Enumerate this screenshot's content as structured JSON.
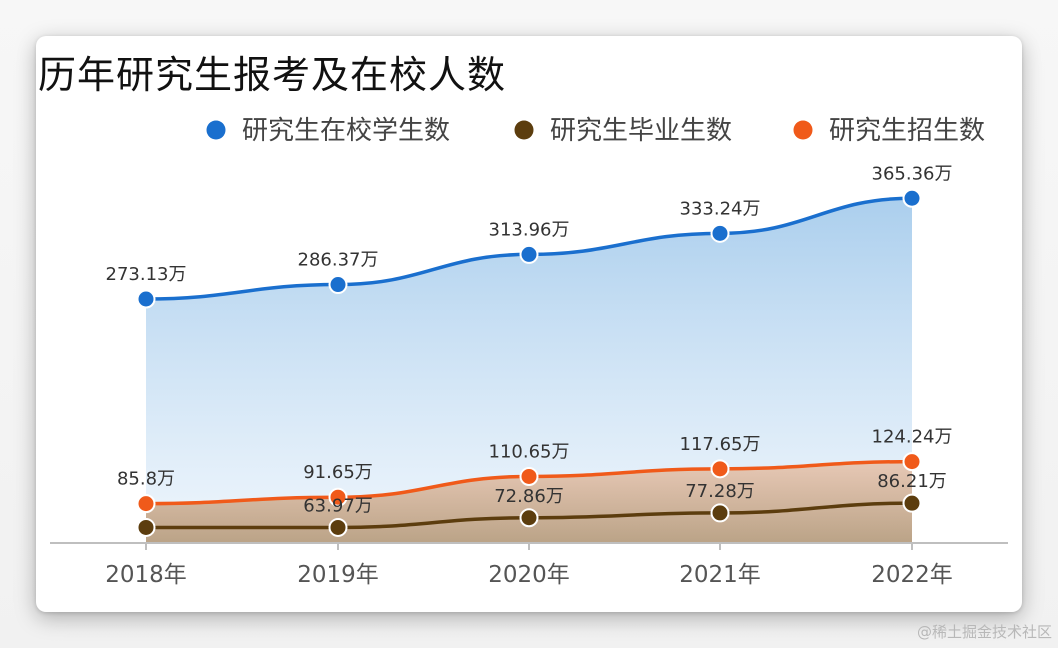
{
  "chart_data": {
    "type": "area",
    "title": "历年研究生报考及在校人数",
    "categories": [
      "2018年",
      "2019年",
      "2020年",
      "2021年",
      "2022年"
    ],
    "series": [
      {
        "name": "研究生在校学生数",
        "color": "#1a6fce",
        "values": [
          273.13,
          286.37,
          313.96,
          333.24,
          365.36
        ],
        "labels": [
          "273.13万",
          "286.37万",
          "313.96万",
          "333.24万",
          "365.36万"
        ]
      },
      {
        "name": "研究生毕业生数",
        "color": "#5c3d0e",
        "values": [
          63.97,
          63.97,
          72.86,
          77.28,
          86.21
        ],
        "labels": [
          "",
          "63.97万",
          "72.86万",
          "77.28万",
          "86.21万"
        ]
      },
      {
        "name": "研究生招生数",
        "color": "#f05a1a",
        "values": [
          85.8,
          91.65,
          110.65,
          117.65,
          124.24
        ],
        "labels": [
          "85.8万",
          "91.65万",
          "110.65万",
          "117.65万",
          "124.24万"
        ]
      }
    ],
    "ylim": [
      40,
      400
    ],
    "grid": false,
    "legend": "top-right"
  },
  "watermark": "@稀土掘金技术社区"
}
